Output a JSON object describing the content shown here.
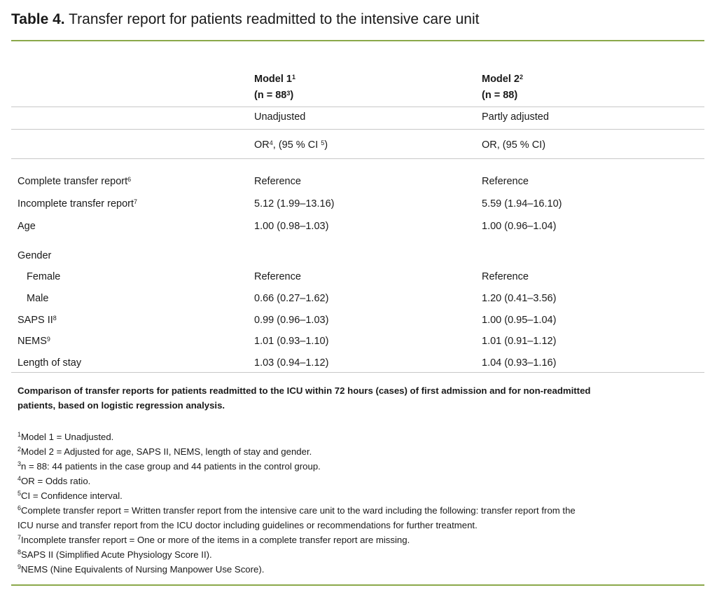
{
  "title": {
    "label": "Table 4.",
    "text": " Transfer report for patients readmitted to the intensive care unit"
  },
  "header": {
    "model1": {
      "name": "Model 1",
      "sup": "1",
      "n": "(n = 88",
      "n_sup": "3",
      "n_close": ")",
      "adjustment": "Unadjusted",
      "measure": "OR",
      "measure_sup": "4",
      "measure_rest": ", (95 % CI ",
      "ci_sup": "5",
      "ci_close": ")"
    },
    "model2": {
      "name": "Model 2",
      "sup": "2",
      "n": "(n = 88)",
      "adjustment": "Partly adjusted",
      "measure": "OR, (95 % CI)"
    }
  },
  "rows": [
    {
      "label": "Complete transfer report",
      "sup": "6",
      "m1": "Reference",
      "m2": "Reference"
    },
    {
      "label": "Incomplete transfer report",
      "sup": "7",
      "m1": "5.12 (1.99–13.16)",
      "m2": "5.59 (1.94–16.10)"
    },
    {
      "label": "Age",
      "sup": "",
      "m1": "1.00 (0.98–1.03)",
      "m2": "1.00 (0.96–1.04)"
    },
    {
      "label": "Gender",
      "sup": "",
      "m1": "",
      "m2": ""
    },
    {
      "label": "Female",
      "sup": "",
      "m1": "Reference",
      "m2": "Reference"
    },
    {
      "label": "Male",
      "sup": "",
      "m1": "0.66 (0.27–1.62)",
      "m2": "1.20 (0.41–3.56)"
    },
    {
      "label": "SAPS II",
      "sup": "8",
      "m1": "0.99 (0.96–1.03)",
      "m2": "1.00 (0.95–1.04)"
    },
    {
      "label": "NEMS",
      "sup": "9",
      "m1": "1.01 (0.93–1.10)",
      "m2": "1.01 (0.91–1.12)"
    },
    {
      "label": "Length of stay",
      "sup": "",
      "m1": "1.03 (0.94–1.12)",
      "m2": "1.04 (0.93–1.16)"
    }
  ],
  "caption": [
    "Comparison of transfer reports for patients readmitted to the ICU within 72 hours (cases) of first admission and for non-readmitted",
    "patients, based on logistic regression analysis."
  ],
  "footnotes": [
    {
      "sup": "1",
      "text": "Model 1 = Unadjusted."
    },
    {
      "sup": "2",
      "text": "Model 2 = Adjusted for age, SAPS II, NEMS, length of stay and gender."
    },
    {
      "sup": "3",
      "text": "n = 88: 44 patients in the case group and 44 patients in the control group."
    },
    {
      "sup": "4",
      "text": "OR = Odds ratio."
    },
    {
      "sup": "5",
      "text": "CI = Confidence interval."
    },
    {
      "sup": "6",
      "text": "Complete transfer report = Written transfer report from the intensive care unit to the ward including the following: transfer report from the"
    },
    {
      "sup": "",
      "text": "ICU nurse and transfer report from the ICU doctor including guidelines or recommendations for further treatment."
    },
    {
      "sup": "7",
      "text": "Incomplete transfer report = One or more of the items in a complete transfer report are missing."
    },
    {
      "sup": "8",
      "text": "SAPS II (Simplified Acute Physiology Score II)."
    },
    {
      "sup": "9",
      "text": "NEMS (Nine Equivalents of Nursing Manpower Use Score)."
    }
  ],
  "colors": {
    "rule_green": "#8aa84a",
    "rule_grey": "#c8c8c8"
  }
}
